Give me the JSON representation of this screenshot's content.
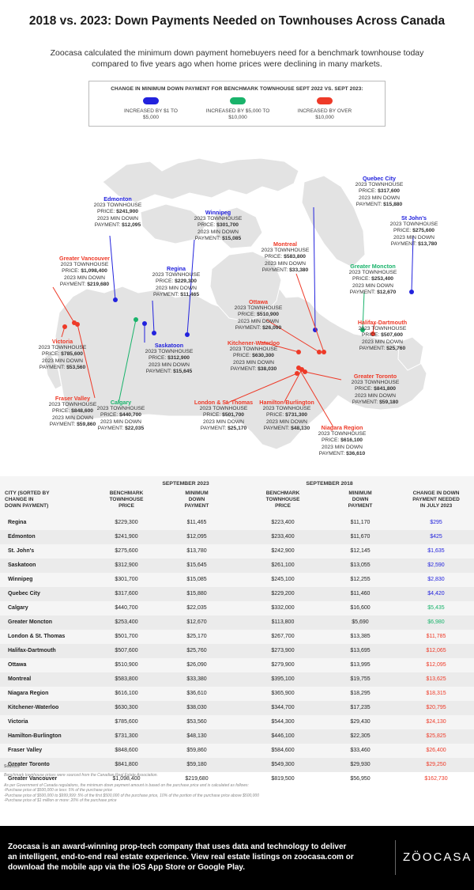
{
  "title": "2018 vs. 2023: Down Payments Needed on Townhouses Across Canada",
  "intro": "Zoocasa calculated the minimum down payment homebuyers need for a benchmark townhouse today compared to five years ago when home prices were declining in many markets.",
  "colors": {
    "blue": "#2222dd",
    "green": "#19b36b",
    "red": "#ee3a28",
    "map": "#e3e3e3"
  },
  "legend": {
    "title": "CHANGE IN MINIMUM DOWN PAYMENT FOR BENCHMARK TOWNHOUSE SEPT 2022 VS. SEPT 2023:",
    "items": [
      {
        "label_line1": "INCREASED BY $1 TO",
        "label_line2": "$5,000",
        "color": "#2222dd"
      },
      {
        "label_line1": "INCREASED BY $5,000 TO",
        "label_line2": "$10,000",
        "color": "#19b36b"
      },
      {
        "label_line1": "INCREASED BY OVER",
        "label_line2": "$10,000",
        "color": "#ee3a28"
      }
    ]
  },
  "map": {
    "line1": "2023 TOWNHOUSE",
    "price_prefix": "PRICE: ",
    "line3": "2023 MIN DOWN",
    "payment_prefix": "PAYMENT: ",
    "cities": [
      {
        "name": "Quebec City",
        "price": "$317,600",
        "payment": "$15,880",
        "color": "#2222dd"
      },
      {
        "name": "St John's",
        "price": "$275,600",
        "payment": "$13,780",
        "color": "#2222dd"
      },
      {
        "name": "Edmonton",
        "price": "$241,900",
        "payment": "$12,095",
        "color": "#2222dd"
      },
      {
        "name": "Winnipeg",
        "price": "$301,700",
        "payment": "$15,085",
        "color": "#2222dd"
      },
      {
        "name": "Greater Vancouver",
        "price": "$1,098,400",
        "payment": "$219,680",
        "color": "#ee3a28"
      },
      {
        "name": "Regina",
        "price": "$229,300",
        "payment": "$11,465",
        "color": "#2222dd"
      },
      {
        "name": "Montreal",
        "price": "$583,800",
        "payment": "$33,380",
        "color": "#ee3a28"
      },
      {
        "name": "Greater Moncton",
        "price": "$253,400",
        "payment": "$12,670",
        "color": "#19b36b"
      },
      {
        "name": "Ottawa",
        "price": "$510,900",
        "payment": "$26,090",
        "color": "#ee3a28"
      },
      {
        "name": "Halifax-Dartmouth",
        "price": "$507,600",
        "payment": "$25,760",
        "color": "#ee3a28"
      },
      {
        "name": "Victoria",
        "price": "$785,600",
        "payment": "$53,560",
        "color": "#ee3a28"
      },
      {
        "name": "Saskatoon",
        "price": "$312,900",
        "payment": "$15,645",
        "color": "#2222dd"
      },
      {
        "name": "Kitchener-Waterloo",
        "price": "$630,300",
        "payment": "$38,030",
        "color": "#ee3a28"
      },
      {
        "name": "Greater Toronto",
        "price": "$841,800",
        "payment": "$59,180",
        "color": "#ee3a28"
      },
      {
        "name": "Fraser Valley",
        "price": "$848,600",
        "payment": "$59,860",
        "color": "#ee3a28"
      },
      {
        "name": "Calgary",
        "price": "$440,700",
        "payment": "$22,035",
        "color": "#19b36b"
      },
      {
        "name": "London & St. Thomas",
        "price": "$501,700",
        "payment": "$25,170",
        "color": "#ee3a28"
      },
      {
        "name": "Hamilton-Burlington",
        "price": "$731,300",
        "payment": "$48,130",
        "color": "#ee3a28"
      },
      {
        "name": "Niagara Region",
        "price": "$616,100",
        "payment": "$36,610",
        "color": "#ee3a28"
      }
    ]
  },
  "table": {
    "group_2023": "SEPTEMBER 2023",
    "group_2018": "SEPTEMBER 2018",
    "headers": {
      "city": [
        "CITY (SORTED BY",
        "CHANGE IN",
        "DOWN PAYMENT)"
      ],
      "price_2023": [
        "BENCHMARK",
        "TOWNHOUSE",
        "PRICE"
      ],
      "down_2023": [
        "MINIMUM",
        "DOWN",
        "PAYMENT"
      ],
      "price_2018": [
        "BENCHMARK",
        "TOWNHOUSE",
        "PRICE"
      ],
      "down_2018": [
        "MINIMUM",
        "DOWN",
        "PAYMENT"
      ],
      "change": [
        "CHANGE IN DOWN",
        "PAYMENT NEEDED",
        "IN JULY 2023"
      ]
    },
    "rows": [
      {
        "city": "Regina",
        "p23": "$229,300",
        "d23": "$11,465",
        "p18": "$223,400",
        "d18": "$11,170",
        "change": "$295",
        "color": "#2222dd"
      },
      {
        "city": "Edmonton",
        "p23": "$241,900",
        "d23": "$12,095",
        "p18": "$233,400",
        "d18": "$11,670",
        "change": "$425",
        "color": "#2222dd"
      },
      {
        "city": "St. John's",
        "p23": "$275,600",
        "d23": "$13,780",
        "p18": "$242,900",
        "d18": "$12,145",
        "change": "$1,635",
        "color": "#2222dd"
      },
      {
        "city": "Saskatoon",
        "p23": "$312,900",
        "d23": "$15,645",
        "p18": "$261,100",
        "d18": "$13,055",
        "change": "$2,590",
        "color": "#2222dd"
      },
      {
        "city": "Winnipeg",
        "p23": "$301,700",
        "d23": "$15,085",
        "p18": "$245,100",
        "d18": "$12,255",
        "change": "$2,830",
        "color": "#2222dd"
      },
      {
        "city": "Quebec City",
        "p23": "$317,600",
        "d23": "$15,880",
        "p18": "$229,200",
        "d18": "$11,460",
        "change": "$4,420",
        "color": "#2222dd"
      },
      {
        "city": "Calgary",
        "p23": "$440,700",
        "d23": "$22,035",
        "p18": "$332,000",
        "d18": "$16,600",
        "change": "$5,435",
        "color": "#19b36b"
      },
      {
        "city": "Greater Moncton",
        "p23": "$253,400",
        "d23": "$12,670",
        "p18": "$113,800",
        "d18": "$5,690",
        "change": "$6,980",
        "color": "#19b36b"
      },
      {
        "city": "London & St. Thomas",
        "p23": "$501,700",
        "d23": "$25,170",
        "p18": "$267,700",
        "d18": "$13,385",
        "change": "$11,785",
        "color": "#ee3a28"
      },
      {
        "city": "Halifax-Dartmouth",
        "p23": "$507,600",
        "d23": "$25,760",
        "p18": "$273,900",
        "d18": "$13,695",
        "change": "$12,065",
        "color": "#ee3a28"
      },
      {
        "city": "Ottawa",
        "p23": "$510,900",
        "d23": "$26,090",
        "p18": "$279,900",
        "d18": "$13,995",
        "change": "$12,095",
        "color": "#ee3a28"
      },
      {
        "city": "Montreal",
        "p23": "$583,800",
        "d23": "$33,380",
        "p18": "$395,100",
        "d18": "$19,755",
        "change": "$13,625",
        "color": "#ee3a28"
      },
      {
        "city": "Niagara Region",
        "p23": "$616,100",
        "d23": "$36,610",
        "p18": "$365,900",
        "d18": "$18,295",
        "change": "$18,315",
        "color": "#ee3a28"
      },
      {
        "city": "Kitchener-Waterloo",
        "p23": "$630,300",
        "d23": "$38,030",
        "p18": "$344,700",
        "d18": "$17,235",
        "change": "$20,795",
        "color": "#ee3a28"
      },
      {
        "city": "Victoria",
        "p23": "$785,600",
        "d23": "$53,560",
        "p18": "$544,300",
        "d18": "$29,430",
        "change": "$24,130",
        "color": "#ee3a28"
      },
      {
        "city": "Hamilton-Burlington",
        "p23": "$731,300",
        "d23": "$48,130",
        "p18": "$446,100",
        "d18": "$22,305",
        "change": "$25,825",
        "color": "#ee3a28"
      },
      {
        "city": "Fraser Valley",
        "p23": "$848,600",
        "d23": "$59,860",
        "p18": "$584,600",
        "d18": "$33,460",
        "change": "$26,400",
        "color": "#ee3a28"
      },
      {
        "city": "Greater Toronto",
        "p23": "$841,800",
        "d23": "$59,180",
        "p18": "$549,300",
        "d18": "$29,930",
        "change": "$29,250",
        "color": "#ee3a28"
      },
      {
        "city": "Greater Vancouver",
        "p23": "$1,098,400",
        "d23": "$219,680",
        "p18": "$819,500",
        "d18": "$56,950",
        "change": "$162,730",
        "color": "#ee3a28"
      }
    ]
  },
  "sources": {
    "heading": "Sources",
    "line1": "Benchmark townhouse prices were sourced from the Canadian Real Estate Association.",
    "lines": [
      "As per Government of Canada regulations, the minimum down payment amount is based on the purchase price and is calculated as follows:",
      "-Purchase price of $500,000 or less: 5% of the purchase price",
      "-Purchase price of $500,000 to $999,999: 5% of the first $500,000 of the purchase price, 10% of the portion of the purchase price above $500,000",
      "-Purchase price of $1 million or more: 20% of the purchase price"
    ]
  },
  "footer": {
    "text": "Zoocasa is an award-winning prop-tech company that uses data and technology to deliver an intelligent, end-to-end real estate experience. View real estate listings on zoocasa.com or download the mobile app via the iOS App Store or Google Play.",
    "logo": "ZÖOCASA"
  },
  "chart_data": {
    "type": "table",
    "title": "2018 vs. 2023: Down Payments Needed on Townhouses Across Canada",
    "columns": [
      "City",
      "Sept 2023 Benchmark Townhouse Price",
      "Sept 2023 Minimum Down Payment",
      "Sept 2018 Benchmark Townhouse Price",
      "Sept 2018 Minimum Down Payment",
      "Change in Down Payment"
    ],
    "rows": [
      [
        "Regina",
        229300,
        11465,
        223400,
        11170,
        295
      ],
      [
        "Edmonton",
        241900,
        12095,
        233400,
        11670,
        425
      ],
      [
        "St. John's",
        275600,
        13780,
        242900,
        12145,
        1635
      ],
      [
        "Saskatoon",
        312900,
        15645,
        261100,
        13055,
        2590
      ],
      [
        "Winnipeg",
        301700,
        15085,
        245100,
        12255,
        2830
      ],
      [
        "Quebec City",
        317600,
        15880,
        229200,
        11460,
        4420
      ],
      [
        "Calgary",
        440700,
        22035,
        332000,
        16600,
        5435
      ],
      [
        "Greater Moncton",
        253400,
        12670,
        113800,
        5690,
        6980
      ],
      [
        "London & St. Thomas",
        501700,
        25170,
        267700,
        13385,
        11785
      ],
      [
        "Halifax-Dartmouth",
        507600,
        25760,
        273900,
        13695,
        12065
      ],
      [
        "Ottawa",
        510900,
        26090,
        279900,
        13995,
        12095
      ],
      [
        "Montreal",
        583800,
        33380,
        395100,
        19755,
        13625
      ],
      [
        "Niagara Region",
        616100,
        36610,
        365900,
        18295,
        18315
      ],
      [
        "Kitchener-Waterloo",
        630300,
        38030,
        344700,
        17235,
        20795
      ],
      [
        "Victoria",
        785600,
        53560,
        544300,
        29430,
        24130
      ],
      [
        "Hamilton-Burlington",
        731300,
        48130,
        446100,
        22305,
        25825
      ],
      [
        "Fraser Valley",
        848600,
        59860,
        584600,
        33460,
        26400
      ],
      [
        "Greater Toronto",
        841800,
        59180,
        549300,
        29930,
        29250
      ],
      [
        "Greater Vancouver",
        1098400,
        219680,
        819500,
        56950,
        162730
      ]
    ]
  }
}
